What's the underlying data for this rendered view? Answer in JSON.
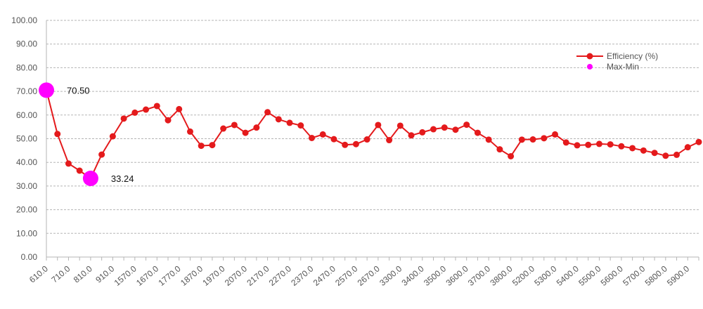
{
  "chart_data": {
    "type": "line",
    "title": "",
    "xlabel": "",
    "ylabel": "",
    "ylim": [
      0,
      100
    ],
    "y_ticks": [
      "0.00",
      "10.00",
      "20.00",
      "30.00",
      "40.00",
      "50.00",
      "60.00",
      "70.00",
      "80.00",
      "90.00",
      "100.00"
    ],
    "x": [
      "610.0",
      "660.0",
      "710.0",
      "760.0",
      "810.0",
      "860.0",
      "910.0",
      "1520.0",
      "1570.0",
      "1620.0",
      "1670.0",
      "1720.0",
      "1770.0",
      "1820.0",
      "1870.0",
      "1920.0",
      "1970.0",
      "2020.0",
      "2070.0",
      "2120.0",
      "2170.0",
      "2220.0",
      "2270.0",
      "2320.0",
      "2370.0",
      "2420.0",
      "2470.0",
      "2520.0",
      "2570.0",
      "2620.0",
      "2670.0",
      "3250.0",
      "3300.0",
      "3350.0",
      "3400.0",
      "3450.0",
      "3500.0",
      "3550.0",
      "3600.0",
      "3650.0",
      "3700.0",
      "3750.0",
      "3800.0",
      "5150.0",
      "5200.0",
      "5250.0",
      "5300.0",
      "5350.0",
      "5400.0",
      "5450.0",
      "5500.0",
      "5550.0",
      "5600.0",
      "5650.0",
      "5700.0",
      "5750.0",
      "5800.0",
      "5850.0",
      "5900.0",
      "5950.0"
    ],
    "x_tick_labels": [
      "610.0",
      "710.0",
      "810.0",
      "910.0",
      "1570.0",
      "1670.0",
      "1770.0",
      "1870.0",
      "1970.0",
      "2070.0",
      "2170.0",
      "2270.0",
      "2370.0",
      "2470.0",
      "2570.0",
      "2670.0",
      "3300.0",
      "3400.0",
      "3500.0",
      "3600.0",
      "3700.0",
      "3800.0",
      "5200.0",
      "5300.0",
      "5400.0",
      "5500.0",
      "5600.0",
      "5700.0",
      "5800.0",
      "5900.0"
    ],
    "series": [
      {
        "name": "Efficiency (%)",
        "color": "#e41a1c",
        "values": [
          70.5,
          52.0,
          39.5,
          36.5,
          33.24,
          43.3,
          51.0,
          58.5,
          61.0,
          62.3,
          63.8,
          57.8,
          62.5,
          53.0,
          47.0,
          47.3,
          54.3,
          55.8,
          52.5,
          54.7,
          61.2,
          58.2,
          56.7,
          55.6,
          50.3,
          51.8,
          49.8,
          47.4,
          47.7,
          49.7,
          55.8,
          49.4,
          55.5,
          51.4,
          52.7,
          54.0,
          54.7,
          53.8,
          55.9,
          52.5,
          49.6,
          45.5,
          42.6,
          49.6,
          49.7,
          50.2,
          51.8,
          48.4,
          47.2,
          47.4,
          47.8,
          47.6,
          46.8,
          46.0,
          45.0,
          44.0,
          42.8,
          43.2,
          46.4,
          48.6
        ]
      },
      {
        "name": "Max-Min",
        "color": "#ff00ff",
        "points": [
          {
            "index": 0,
            "value": 70.5,
            "label": "70.50"
          },
          {
            "index": 4,
            "value": 33.24,
            "label": "33.24"
          }
        ]
      }
    ],
    "grid": true,
    "legend_position": "top-right"
  }
}
